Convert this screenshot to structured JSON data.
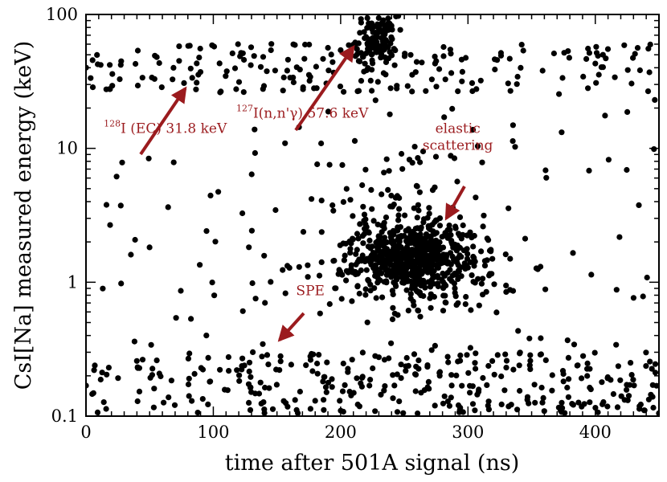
{
  "chart_data": {
    "type": "scatter",
    "xlabel": "time after 501A signal (ns)",
    "ylabel": "CsI[Na] measured energy (keV)",
    "xlim": [
      0,
      450
    ],
    "ylim": [
      0.1,
      100
    ],
    "yscale": "log",
    "x_ticks": [
      {
        "value": 0,
        "label": "0"
      },
      {
        "value": 100,
        "label": "100"
      },
      {
        "value": 200,
        "label": "200"
      },
      {
        "value": 300,
        "label": "300"
      },
      {
        "value": 400,
        "label": "400"
      }
    ],
    "y_ticks": [
      {
        "value": 0.1,
        "label": "0.1"
      },
      {
        "value": 1,
        "label": "1"
      },
      {
        "value": 10,
        "label": "10"
      },
      {
        "value": 100,
        "label": "100"
      }
    ],
    "grid": false,
    "marker_color": "#000000",
    "annotation_color": "#9b1b1e",
    "annotations": [
      {
        "sup": "128",
        "text": "I (EC) 31.8 keV",
        "x": 14,
        "y": 13,
        "arrow_to": [
          78,
          28
        ]
      },
      {
        "sup": "127",
        "text": "I(n,n'γ) 57.6 keV",
        "x": 118,
        "y": 17,
        "arrow_to": [
          210,
          57
        ]
      },
      {
        "text_lines": [
          "elastic",
          "scattering"
        ],
        "x": 292,
        "y": 13,
        "arrow_to": [
          283,
          3.0
        ]
      },
      {
        "text": "SPE",
        "x": 165,
        "y": 0.8,
        "arrow_to": [
          152,
          0.37
        ]
      }
    ],
    "series": [
      {
        "type": "uniform",
        "clusters": [
          {
            "count": 320,
            "x": [
              0,
              450
            ],
            "logy": [
              -0.98,
              -0.52
            ]
          },
          {
            "count": 200,
            "x": [
              0,
              450
            ],
            "logy": [
              1.42,
              1.78
            ]
          },
          {
            "count": 130,
            "x": [
              0,
              450
            ],
            "logy": [
              -0.55,
              1.42
            ]
          }
        ]
      },
      {
        "type": "gaussian",
        "clusters": [
          {
            "count": 120,
            "x": 228,
            "sx": 8,
            "logy": 1.81,
            "sy": 0.09
          },
          {
            "count": 480,
            "x": 255,
            "sx": 20,
            "logy": 0.18,
            "sy": 0.11
          },
          {
            "count": 240,
            "x": 265,
            "sx": 40,
            "logy": 0.15,
            "sy": 0.2
          },
          {
            "count": 60,
            "x": 245,
            "sx": 30,
            "logy": 0.6,
            "sy": 0.35
          }
        ]
      }
    ]
  }
}
